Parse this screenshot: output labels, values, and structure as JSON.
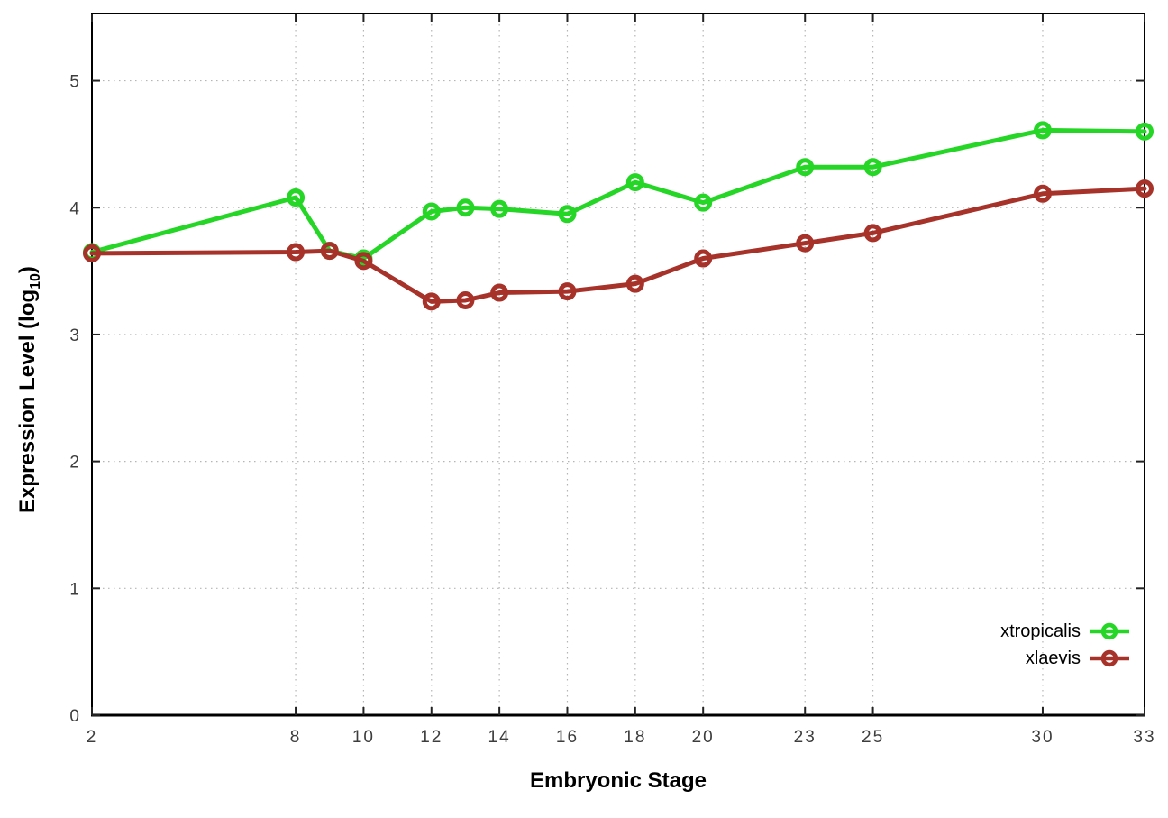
{
  "chart_data": {
    "type": "line",
    "title": "",
    "xlabel": "Embryonic Stage",
    "ylabel": "Expression Level (log10)",
    "ylabel_parts": {
      "prefix": "Expression Level (log",
      "sub": "10",
      "suffix": ")"
    },
    "x": [
      2,
      8,
      9,
      10,
      12,
      13,
      14,
      16,
      18,
      20,
      23,
      25,
      30,
      33
    ],
    "series": [
      {
        "name": "xtropicalis",
        "color": "#26d626",
        "marker": "open-circle",
        "values": [
          3.65,
          4.08,
          3.66,
          3.6,
          3.97,
          4.0,
          3.99,
          3.95,
          4.2,
          4.04,
          4.32,
          4.32,
          4.61,
          4.6
        ]
      },
      {
        "name": "xlaevis",
        "color": "#a63229",
        "marker": "open-circle",
        "values": [
          3.64,
          3.65,
          3.66,
          3.58,
          3.26,
          3.27,
          3.33,
          3.34,
          3.4,
          3.6,
          3.72,
          3.8,
          4.11,
          4.15
        ]
      }
    ],
    "x_ticks": [
      2,
      8,
      10,
      12,
      14,
      16,
      18,
      20,
      23,
      25,
      30,
      33
    ],
    "y_ticks": [
      0,
      1,
      2,
      3,
      4,
      5
    ],
    "xlim": [
      2,
      33
    ],
    "ylim": [
      0,
      5.53
    ],
    "grid": true,
    "legend_position": "inside-bottom-right",
    "colors": {
      "axis": "#000000",
      "grid": "#b5b5b5",
      "tick_label": "#3d3d3d"
    }
  }
}
